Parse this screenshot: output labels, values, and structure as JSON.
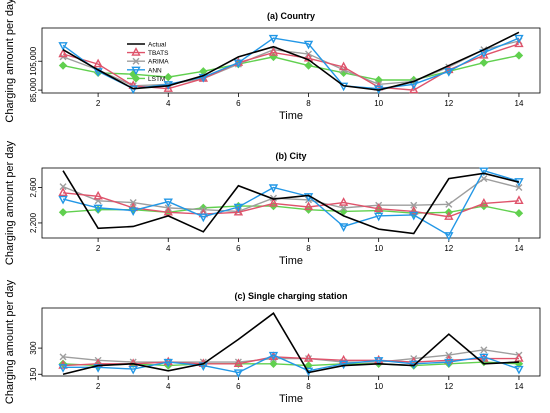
{
  "ylabel": "Charging amount per day",
  "legend": [
    "Actual",
    "TBATS",
    "ARIMA",
    "ANN",
    "LSTM"
  ],
  "colors": {
    "Actual": "#000000",
    "TBATS": "#df536b",
    "ARIMA": "#9e9e9e",
    "ANN": "#2297e6",
    "LSTM": "#61d04f"
  },
  "chart_data": [
    {
      "type": "line",
      "title": "(a) Country",
      "xlabel": "Time",
      "x": [
        1,
        2,
        3,
        4,
        5,
        6,
        7,
        8,
        9,
        10,
        11,
        12,
        13,
        14
      ],
      "x_ticks": [
        2,
        4,
        6,
        8,
        10,
        12,
        14
      ],
      "y_ticks": [
        85000,
        105000
      ],
      "ylim": [
        83000,
        128000
      ],
      "series": [
        {
          "name": "Actual",
          "values": [
            113000,
            99000,
            86000,
            88000,
            95000,
            108000,
            115000,
            106000,
            88000,
            85000,
            91000,
            102000,
            113000,
            125000
          ]
        },
        {
          "name": "TBATS",
          "values": [
            110000,
            103000,
            88000,
            86000,
            93000,
            104000,
            111000,
            107000,
            101000,
            87000,
            85000,
            99000,
            109000,
            117000
          ]
        },
        {
          "name": "ARIMA",
          "values": [
            108000,
            99000,
            88000,
            89000,
            93000,
            103000,
            113000,
            110000,
            99000,
            89000,
            91000,
            101000,
            113000,
            119000
          ]
        },
        {
          "name": "ANN",
          "values": [
            116000,
            98000,
            86000,
            89000,
            94000,
            104000,
            121000,
            117000,
            88000,
            86000,
            89000,
            98000,
            111000,
            121000
          ]
        },
        {
          "name": "LSTM",
          "values": [
            102000,
            97000,
            96000,
            94000,
            98000,
            103000,
            108000,
            102000,
            97000,
            92000,
            92000,
            98000,
            104000,
            109000
          ]
        }
      ]
    },
    {
      "type": "line",
      "title": "(b) City",
      "xlabel": "Time",
      "x": [
        1,
        2,
        3,
        4,
        5,
        6,
        7,
        8,
        9,
        10,
        11,
        12,
        13,
        14
      ],
      "x_ticks": [
        2,
        4,
        6,
        8,
        10,
        12,
        14
      ],
      "y_ticks": [
        2200,
        2600
      ],
      "ylim": [
        2030,
        2820
      ],
      "series": [
        {
          "name": "Actual",
          "values": [
            2790,
            2140,
            2160,
            2280,
            2100,
            2620,
            2470,
            2510,
            2280,
            2130,
            2080,
            2700,
            2760,
            2660
          ]
        },
        {
          "name": "TBATS",
          "values": [
            2540,
            2500,
            2370,
            2320,
            2300,
            2320,
            2420,
            2380,
            2430,
            2360,
            2330,
            2270,
            2420,
            2450
          ]
        },
        {
          "name": "ARIMA",
          "values": [
            2610,
            2450,
            2430,
            2370,
            2350,
            2330,
            2480,
            2460,
            2370,
            2400,
            2400,
            2410,
            2700,
            2600
          ]
        },
        {
          "name": "ANN",
          "values": [
            2470,
            2370,
            2340,
            2440,
            2270,
            2380,
            2600,
            2500,
            2160,
            2280,
            2290,
            2060,
            2790,
            2670
          ]
        },
        {
          "name": "LSTM",
          "values": [
            2320,
            2350,
            2350,
            2320,
            2370,
            2390,
            2390,
            2350,
            2330,
            2340,
            2310,
            2320,
            2390,
            2310
          ]
        }
      ]
    },
    {
      "type": "line",
      "title": "(c) Single charging station",
      "xlabel": "Time",
      "x": [
        1,
        2,
        3,
        4,
        5,
        6,
        7,
        8,
        9,
        10,
        11,
        12,
        13,
        14
      ],
      "x_ticks": [
        2,
        4,
        6,
        8,
        10,
        12,
        14
      ],
      "y_ticks": [
        150,
        300
      ],
      "ylim": [
        140,
        530
      ],
      "series": [
        {
          "name": "Actual",
          "values": [
            150,
            200,
            210,
            170,
            210,
            350,
            500,
            160,
            200,
            210,
            200,
            380,
            210,
            220
          ]
        },
        {
          "name": "TBATS",
          "values": [
            200,
            210,
            210,
            220,
            210,
            210,
            250,
            240,
            230,
            230,
            220,
            230,
            240,
            240
          ]
        },
        {
          "name": "ARIMA",
          "values": [
            250,
            230,
            220,
            220,
            220,
            220,
            240,
            240,
            220,
            220,
            240,
            260,
            290,
            260
          ]
        },
        {
          "name": "ANN",
          "values": [
            190,
            190,
            180,
            220,
            200,
            160,
            260,
            170,
            210,
            230,
            210,
            220,
            250,
            180
          ]
        },
        {
          "name": "LSTM",
          "values": [
            210,
            200,
            210,
            200,
            210,
            210,
            210,
            200,
            210,
            210,
            200,
            210,
            220,
            210
          ]
        }
      ]
    }
  ]
}
